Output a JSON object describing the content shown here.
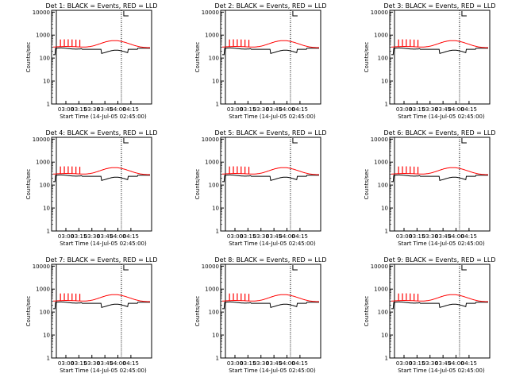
{
  "chart_data": [
    {
      "type": "line",
      "title": "Det 1: BLACK = Events, RED = LLD",
      "xlabel": "Start Time (14-Jul-05 02:45:00)",
      "ylabel": "Counts/sec",
      "x_tick_labels": [
        "03:00",
        "03:15",
        "03:30",
        "03:45",
        "04:00",
        "04:15"
      ],
      "y_tick_labels": [
        "1",
        "10",
        "100",
        "1000",
        "10000"
      ],
      "ylim": [
        1,
        12000
      ],
      "yscale": "log",
      "colors": {
        "events": "#000000",
        "lld": "#ff0000"
      }
    },
    {
      "type": "line",
      "title": "Det 2: BLACK = Events, RED = LLD",
      "xlabel": "Start Time (14-Jul-05 02:45:00)",
      "ylabel": "Counts/sec",
      "x_tick_labels": [
        "03:00",
        "03:15",
        "03:30",
        "03:45",
        "04:00",
        "04:15"
      ],
      "y_tick_labels": [
        "1",
        "10",
        "100",
        "1000",
        "10000"
      ],
      "ylim": [
        1,
        12000
      ],
      "yscale": "log",
      "colors": {
        "events": "#000000",
        "lld": "#ff0000"
      }
    },
    {
      "type": "line",
      "title": "Det 3: BLACK = Events, RED = LLD",
      "xlabel": "Start Time (14-Jul-05 02:45:00)",
      "ylabel": "Counts/sec",
      "x_tick_labels": [
        "03:00",
        "03:15",
        "03:30",
        "03:45",
        "04:00",
        "04:15"
      ],
      "y_tick_labels": [
        "1",
        "10",
        "100",
        "1000",
        "10000"
      ],
      "ylim": [
        1,
        12000
      ],
      "yscale": "log",
      "colors": {
        "events": "#000000",
        "lld": "#ff0000"
      }
    },
    {
      "type": "line",
      "title": "Det 4: BLACK = Events, RED = LLD",
      "xlabel": "Start Time (14-Jul-05 02:45:00)",
      "ylabel": "Counts/sec",
      "x_tick_labels": [
        "03:00",
        "03:15",
        "03:30",
        "03:45",
        "04:00",
        "04:15"
      ],
      "y_tick_labels": [
        "1",
        "10",
        "100",
        "1000",
        "10000"
      ],
      "ylim": [
        1,
        12000
      ],
      "yscale": "log",
      "colors": {
        "events": "#000000",
        "lld": "#ff0000"
      }
    },
    {
      "type": "line",
      "title": "Det 5: BLACK = Events, RED = LLD",
      "xlabel": "Start Time (14-Jul-05 02:45:00)",
      "ylabel": "Counts/sec",
      "x_tick_labels": [
        "03:00",
        "03:15",
        "03:30",
        "03:45",
        "04:00",
        "04:15"
      ],
      "y_tick_labels": [
        "1",
        "10",
        "100",
        "1000",
        "10000"
      ],
      "ylim": [
        1,
        12000
      ],
      "yscale": "log",
      "colors": {
        "events": "#000000",
        "lld": "#ff0000"
      }
    },
    {
      "type": "line",
      "title": "Det 6: BLACK = Events, RED = LLD",
      "xlabel": "Start Time (14-Jul-05 02:45:00)",
      "ylabel": "Counts/sec",
      "x_tick_labels": [
        "03:00",
        "03:15",
        "03:30",
        "03:45",
        "04:00",
        "04:15"
      ],
      "y_tick_labels": [
        "1",
        "10",
        "100",
        "1000",
        "10000"
      ],
      "ylim": [
        1,
        12000
      ],
      "yscale": "log",
      "colors": {
        "events": "#000000",
        "lld": "#ff0000"
      }
    },
    {
      "type": "line",
      "title": "Det 7: BLACK = Events, RED = LLD",
      "xlabel": "Start Time (14-Jul-05 02:45:00)",
      "ylabel": "Counts/sec",
      "x_tick_labels": [
        "03:00",
        "03:15",
        "03:30",
        "03:45",
        "04:00",
        "04:15"
      ],
      "y_tick_labels": [
        "1",
        "10",
        "100",
        "1000",
        "10000"
      ],
      "ylim": [
        1,
        12000
      ],
      "yscale": "log",
      "colors": {
        "events": "#000000",
        "lld": "#ff0000"
      }
    },
    {
      "type": "line",
      "title": "Det 8: BLACK = Events, RED = LLD",
      "xlabel": "Start Time (14-Jul-05 02:45:00)",
      "ylabel": "Counts/sec",
      "x_tick_labels": [
        "03:00",
        "03:15",
        "03:30",
        "03:45",
        "04:00",
        "04:15"
      ],
      "y_tick_labels": [
        "1",
        "10",
        "100",
        "1000",
        "10000"
      ],
      "ylim": [
        1,
        12000
      ],
      "yscale": "log",
      "colors": {
        "events": "#000000",
        "lld": "#ff0000"
      }
    },
    {
      "type": "line",
      "title": "Det 9: BLACK = Events, RED = LLD",
      "xlabel": "Start Time (14-Jul-05 02:45:00)",
      "ylabel": "Counts/sec",
      "x_tick_labels": [
        "03:00",
        "03:15",
        "03:30",
        "03:45",
        "04:00",
        "04:15"
      ],
      "y_tick_labels": [
        "1",
        "10",
        "100",
        "1000",
        "10000"
      ],
      "ylim": [
        1,
        12000
      ],
      "yscale": "log",
      "colors": {
        "events": "#000000",
        "lld": "#ff0000"
      }
    }
  ]
}
